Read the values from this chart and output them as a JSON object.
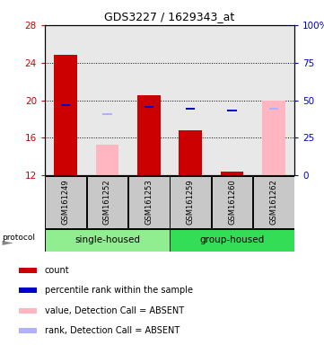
{
  "title": "GDS3227 / 1629343_at",
  "samples": [
    "GSM161249",
    "GSM161252",
    "GSM161253",
    "GSM161259",
    "GSM161260",
    "GSM161262"
  ],
  "ylim_left": [
    12,
    28
  ],
  "ylim_right": [
    0,
    100
  ],
  "yticks_left": [
    12,
    16,
    20,
    24,
    28
  ],
  "yticks_right": [
    0,
    25,
    50,
    75,
    100
  ],
  "yticklabels_right": [
    "0",
    "25",
    "50",
    "75",
    "100%"
  ],
  "red_bars": {
    "indices": [
      0,
      2,
      3,
      4
    ],
    "values": [
      24.8,
      20.5,
      16.8,
      12.4
    ],
    "base": 12,
    "color": "#CC0000"
  },
  "pink_bars": {
    "indices": [
      1,
      5
    ],
    "values": [
      15.3,
      20.0
    ],
    "base": 12,
    "color": "#FFB6C1"
  },
  "blue_squares": {
    "indices": [
      0,
      2,
      3,
      4
    ],
    "values": [
      19.5,
      19.3,
      19.1,
      18.9
    ],
    "color": "#0000CC"
  },
  "lavender_squares": {
    "indices": [
      1,
      5
    ],
    "values": [
      18.5,
      19.1
    ],
    "color": "#B0B0FF"
  },
  "single_housed_color": "#90EE90",
  "group_housed_color": "#33DD55",
  "sample_box_color": "#C8C8C8",
  "left_tick_color": "#CC0000",
  "right_tick_color": "#0000CC",
  "plot_bg_color": "#E8E8E8",
  "legend_items": [
    {
      "color": "#CC0000",
      "label": "count"
    },
    {
      "color": "#0000CC",
      "label": "percentile rank within the sample"
    },
    {
      "color": "#FFB6C1",
      "label": "value, Detection Call = ABSENT"
    },
    {
      "color": "#B0B0FF",
      "label": "rank, Detection Call = ABSENT"
    }
  ]
}
